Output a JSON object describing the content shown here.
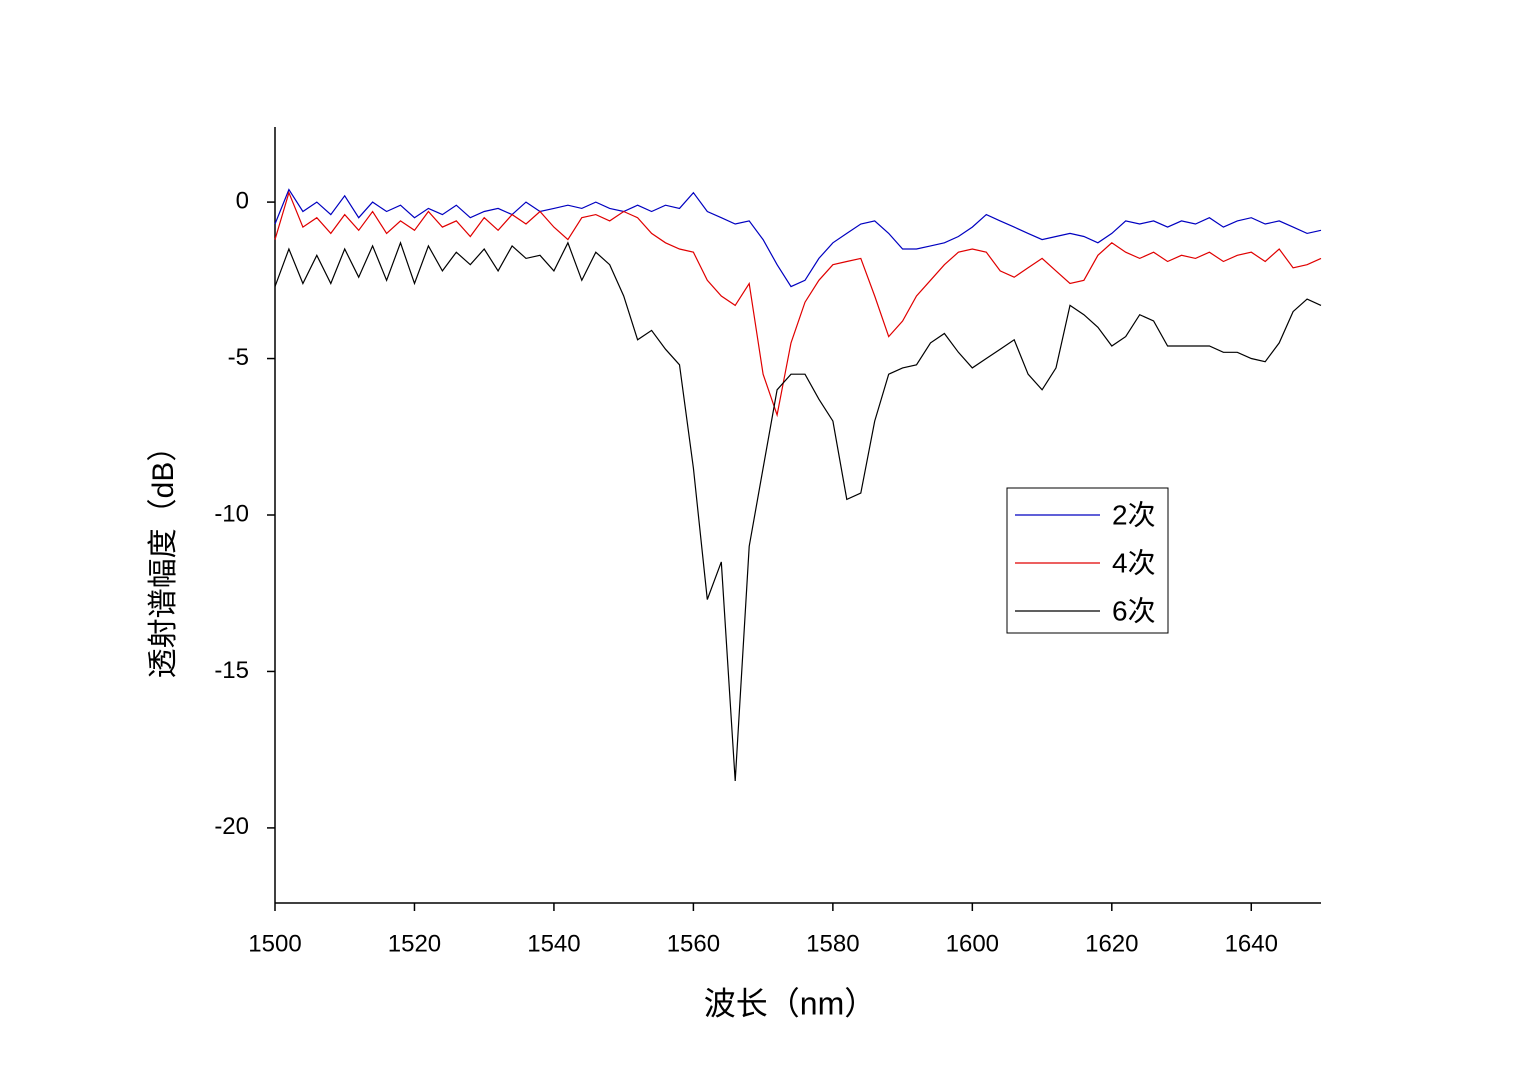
{
  "chart_data": {
    "type": "line",
    "xlabel": "波长（nm）",
    "ylabel": "透射谱幅度（dB）",
    "x": [
      1500,
      1502,
      1504,
      1506,
      1508,
      1510,
      1512,
      1514,
      1516,
      1518,
      1520,
      1522,
      1524,
      1526,
      1528,
      1530,
      1532,
      1534,
      1536,
      1538,
      1540,
      1542,
      1544,
      1546,
      1548,
      1550,
      1552,
      1554,
      1556,
      1558,
      1560,
      1562,
      1564,
      1566,
      1568,
      1570,
      1572,
      1574,
      1576,
      1578,
      1580,
      1582,
      1584,
      1586,
      1588,
      1590,
      1592,
      1594,
      1596,
      1598,
      1600,
      1602,
      1604,
      1606,
      1608,
      1610,
      1612,
      1614,
      1616,
      1618,
      1620,
      1622,
      1624,
      1626,
      1628,
      1630,
      1632,
      1634,
      1636,
      1638,
      1640,
      1642,
      1644,
      1646,
      1648,
      1650
    ],
    "series": [
      {
        "name": "2次",
        "color": "#0000c0",
        "values": [
          -0.7,
          0.4,
          -0.3,
          0,
          -0.4,
          0.2,
          -0.5,
          0,
          -0.3,
          -0.1,
          -0.5,
          -0.2,
          -0.4,
          -0.1,
          -0.5,
          -0.3,
          -0.2,
          -0.4,
          0,
          -0.3,
          -0.2,
          -0.1,
          -0.2,
          0,
          -0.2,
          -0.3,
          -0.1,
          -0.3,
          -0.1,
          -0.2,
          0.3,
          -0.3,
          -0.5,
          -0.7,
          -0.6,
          -1.2,
          -2,
          -2.7,
          -2.5,
          -1.8,
          -1.3,
          -1,
          -0.7,
          -0.6,
          -1,
          -1.5,
          -1.5,
          -1.4,
          -1.3,
          -1.1,
          -0.8,
          -0.4,
          -0.6,
          -0.8,
          -1,
          -1.2,
          -1.1,
          -1,
          -1.1,
          -1.3,
          -1,
          -0.6,
          -0.7,
          -0.6,
          -0.8,
          -0.6,
          -0.7,
          -0.5,
          -0.8,
          -0.6,
          -0.5,
          -0.7,
          -0.6,
          -0.8,
          -1,
          -0.9
        ]
      },
      {
        "name": "4次",
        "color": "#e00000",
        "values": [
          -1.2,
          0.3,
          -0.8,
          -0.5,
          -1,
          -0.4,
          -0.9,
          -0.3,
          -1,
          -0.6,
          -0.9,
          -0.3,
          -0.8,
          -0.6,
          -1.1,
          -0.5,
          -0.9,
          -0.4,
          -0.7,
          -0.3,
          -0.8,
          -1.2,
          -0.5,
          -0.4,
          -0.6,
          -0.3,
          -0.5,
          -1,
          -1.3,
          -1.5,
          -1.6,
          -2.5,
          -3,
          -3.3,
          -2.6,
          -5.5,
          -6.8,
          -4.5,
          -3.2,
          -2.5,
          -2,
          -1.9,
          -1.8,
          -3,
          -4.3,
          -3.8,
          -3,
          -2.5,
          -2,
          -1.6,
          -1.5,
          -1.6,
          -2.2,
          -2.4,
          -2.1,
          -1.8,
          -2.2,
          -2.6,
          -2.5,
          -1.7,
          -1.3,
          -1.6,
          -1.8,
          -1.6,
          -1.9,
          -1.7,
          -1.8,
          -1.6,
          -1.9,
          -1.7,
          -1.6,
          -1.9,
          -1.5,
          -2.1,
          -2,
          -1.8
        ]
      },
      {
        "name": "6次",
        "color": "#000000",
        "values": [
          -2.7,
          -1.5,
          -2.6,
          -1.7,
          -2.6,
          -1.5,
          -2.4,
          -1.4,
          -2.5,
          -1.3,
          -2.6,
          -1.4,
          -2.2,
          -1.6,
          -2,
          -1.5,
          -2.2,
          -1.4,
          -1.8,
          -1.7,
          -2.2,
          -1.3,
          -2.5,
          -1.6,
          -2,
          -3,
          -4.4,
          -4.1,
          -4.7,
          -5.2,
          -8.5,
          -12.7,
          -11.5,
          -18.5,
          -11,
          -8.5,
          -6,
          -5.5,
          -5.5,
          -6.3,
          -7,
          -9.5,
          -9.3,
          -7,
          -5.5,
          -5.3,
          -5.2,
          -4.5,
          -4.2,
          -4.8,
          -5.3,
          -5,
          -4.7,
          -4.4,
          -5.5,
          -6,
          -5.3,
          -3.3,
          -3.6,
          -4,
          -4.6,
          -4.3,
          -3.6,
          -3.8,
          -4.6,
          -4.6,
          -4.6,
          -4.6,
          -4.8,
          -4.8,
          -5,
          -5.1,
          -4.5,
          -3.5,
          -3.1,
          -3.3
        ]
      }
    ],
    "xlim": [
      1500,
      1650
    ],
    "xticks": [
      1500,
      1520,
      1540,
      1560,
      1580,
      1600,
      1620,
      1640
    ],
    "ylim": [
      -22.4,
      2.4
    ],
    "yticks": [
      0,
      -5,
      -10,
      -15,
      -20
    ],
    "legend": "right"
  }
}
